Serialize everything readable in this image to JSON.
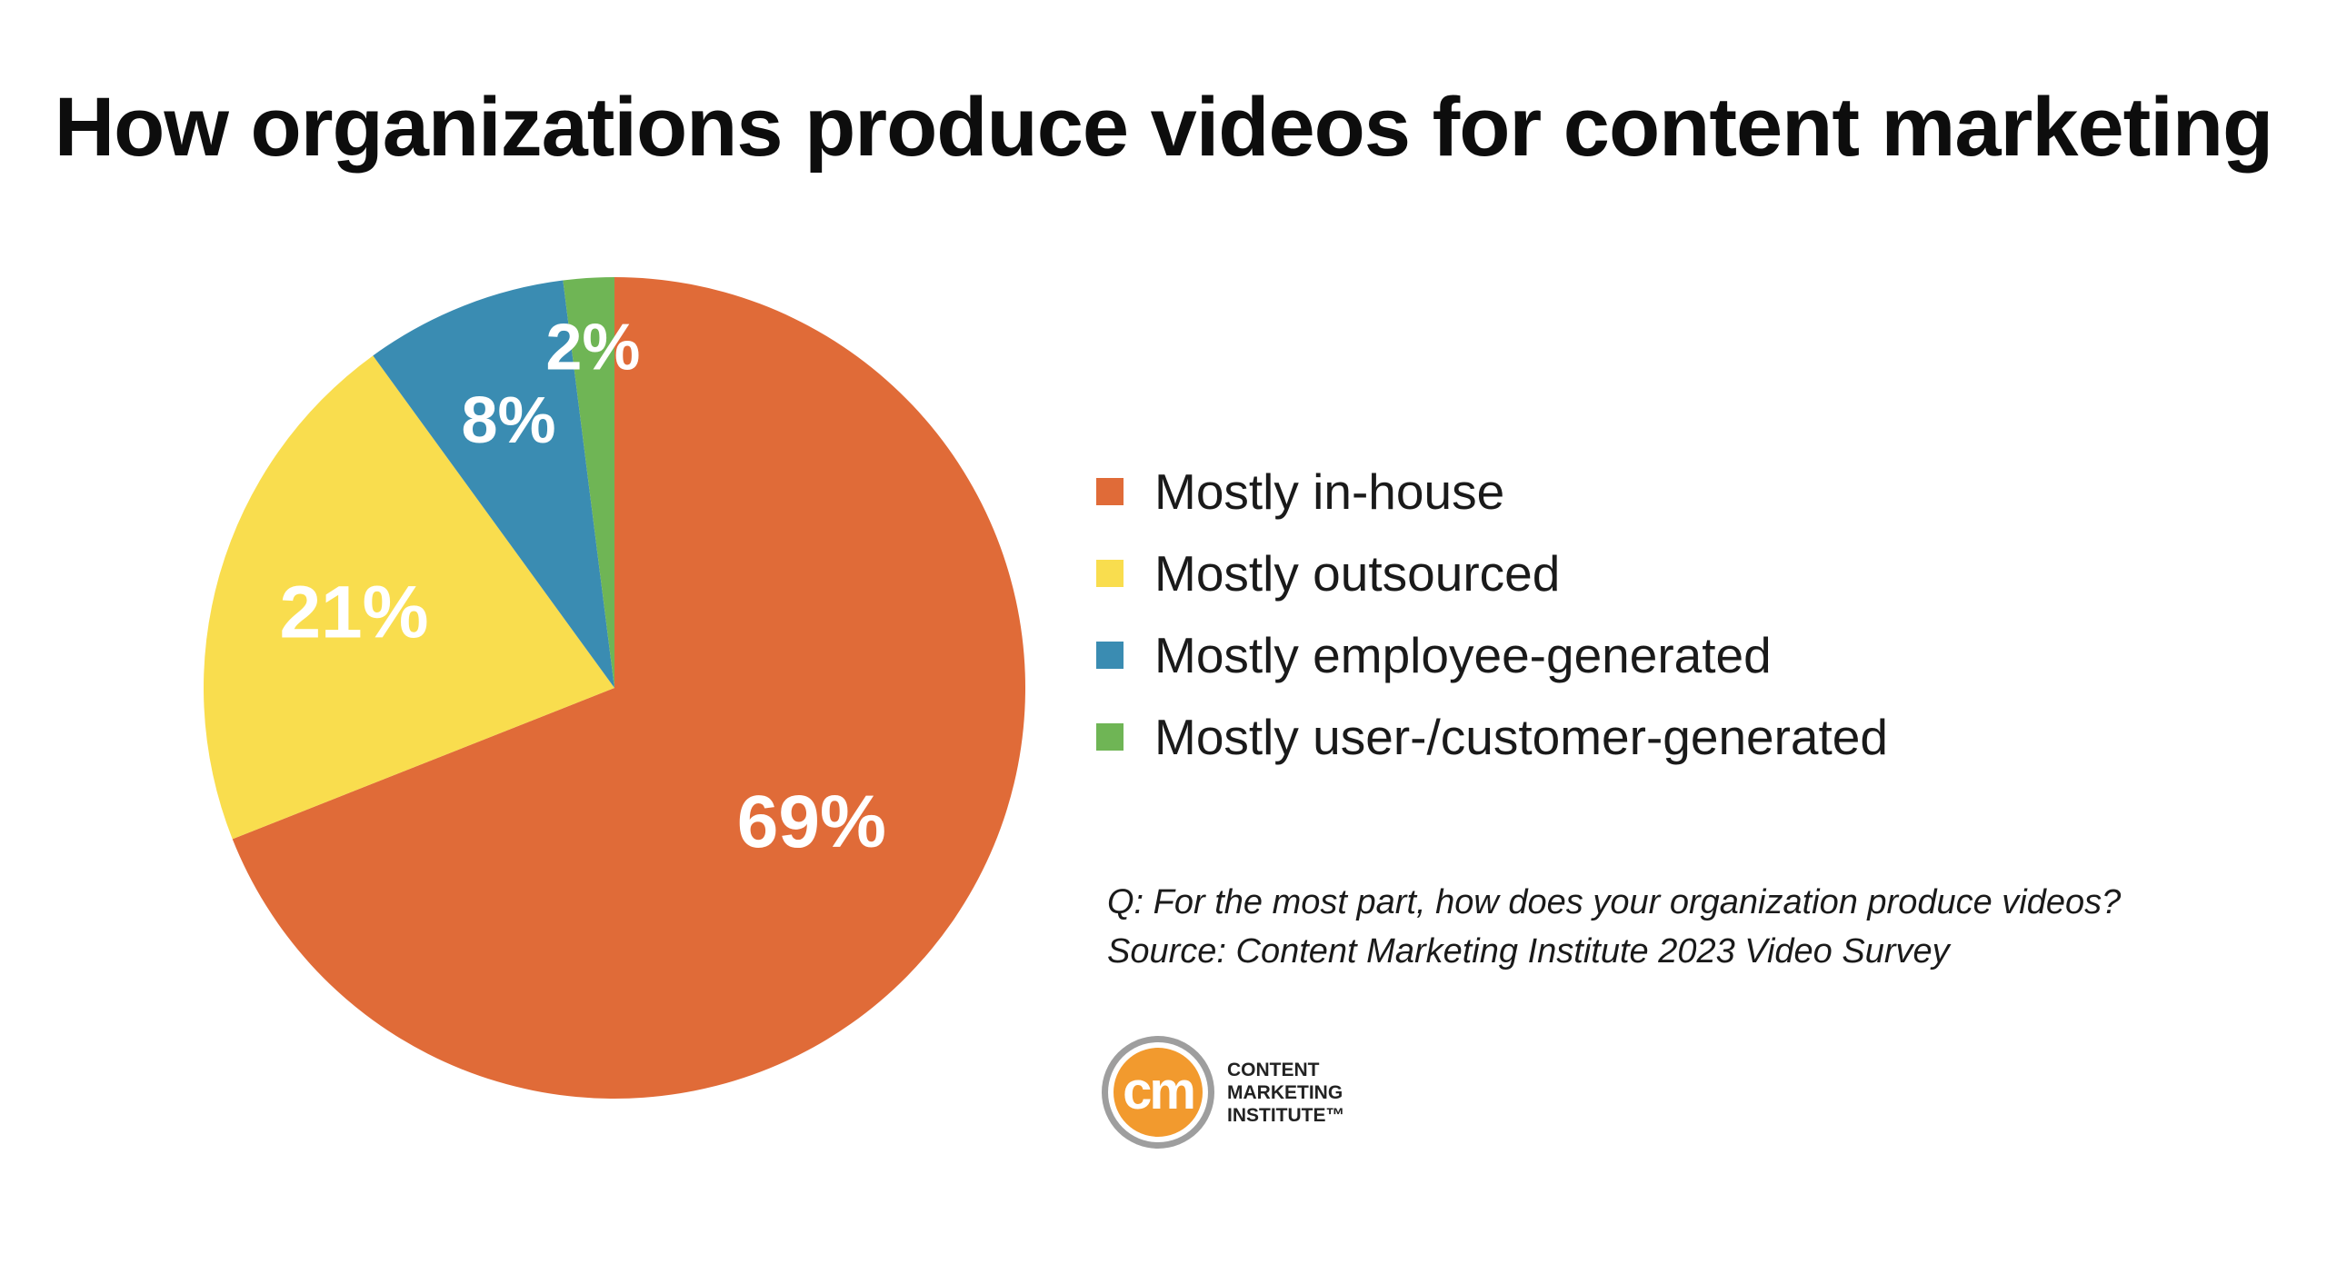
{
  "chart_data": {
    "type": "pie",
    "title": "How organizations produce videos for content marketing",
    "slices": [
      {
        "label": "Mostly in-house",
        "value": 69,
        "display": "69%",
        "color": "#E06B38"
      },
      {
        "label": "Mostly outsourced",
        "value": 21,
        "display": "21%",
        "color": "#F9DD4E"
      },
      {
        "label": "Mostly employee-generated",
        "value": 8,
        "display": "8%",
        "color": "#3A8CB2"
      },
      {
        "label": "Mostly user-/customer-generated",
        "value": 2,
        "display": "2%",
        "color": "#6FB555"
      }
    ],
    "start": "12 o'clock",
    "direction": "clockwise",
    "legend_position": "right"
  },
  "notes": {
    "question": "Q: For the most part, how does your organization produce videos?",
    "source": "Source: Content Marketing Institute 2023 Video Survey"
  },
  "logo": {
    "mark": "cm",
    "lines": [
      "CONTENT",
      "MARKETING",
      "INSTITUTE™"
    ],
    "accent_color": "#F29A2E",
    "ring_color": "#9E9E9E"
  }
}
